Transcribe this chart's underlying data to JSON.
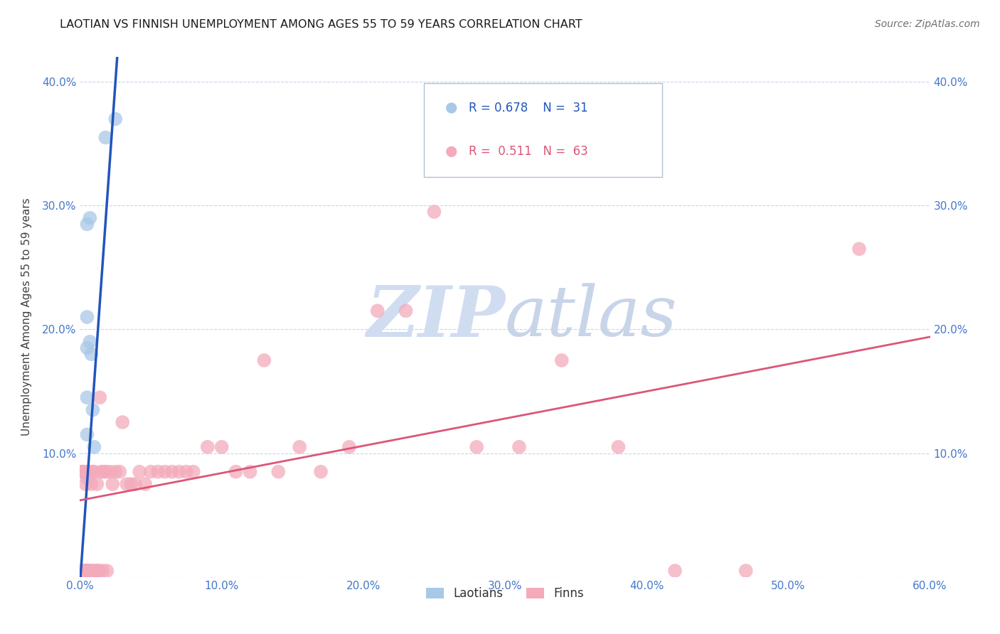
{
  "title": "LAOTIAN VS FINNISH UNEMPLOYMENT AMONG AGES 55 TO 59 YEARS CORRELATION CHART",
  "source": "Source: ZipAtlas.com",
  "ylabel": "Unemployment Among Ages 55 to 59 years",
  "xlim": [
    0.0,
    0.6
  ],
  "ylim": [
    0.0,
    0.42
  ],
  "xticks": [
    0.0,
    0.1,
    0.2,
    0.3,
    0.4,
    0.5,
    0.6
  ],
  "yticks": [
    0.0,
    0.1,
    0.2,
    0.3,
    0.4
  ],
  "laotian_color": "#a8c8e8",
  "finn_color": "#f4aabb",
  "laotian_line_color": "#2255bb",
  "finn_line_color": "#dd5577",
  "tick_color": "#4477cc",
  "watermark_color": "#d0dcf0",
  "laotian_x": [
    0.001,
    0.001,
    0.002,
    0.002,
    0.002,
    0.003,
    0.003,
    0.003,
    0.003,
    0.003,
    0.003,
    0.004,
    0.004,
    0.004,
    0.004,
    0.004,
    0.005,
    0.005,
    0.005,
    0.005,
    0.005,
    0.005,
    0.006,
    0.007,
    0.007,
    0.008,
    0.009,
    0.01,
    0.013,
    0.018,
    0.025
  ],
  "laotian_y": [
    0.005,
    0.005,
    0.005,
    0.005,
    0.005,
    0.005,
    0.005,
    0.005,
    0.005,
    0.005,
    0.005,
    0.005,
    0.005,
    0.005,
    0.005,
    0.005,
    0.115,
    0.08,
    0.145,
    0.185,
    0.21,
    0.285,
    0.005,
    0.19,
    0.29,
    0.18,
    0.135,
    0.105,
    0.005,
    0.355,
    0.37
  ],
  "finn_x": [
    0.001,
    0.002,
    0.002,
    0.003,
    0.003,
    0.004,
    0.004,
    0.004,
    0.005,
    0.005,
    0.006,
    0.007,
    0.007,
    0.008,
    0.008,
    0.009,
    0.01,
    0.01,
    0.011,
    0.012,
    0.013,
    0.014,
    0.015,
    0.016,
    0.017,
    0.018,
    0.019,
    0.021,
    0.023,
    0.025,
    0.028,
    0.03,
    0.033,
    0.036,
    0.039,
    0.042,
    0.046,
    0.05,
    0.055,
    0.06,
    0.065,
    0.07,
    0.075,
    0.08,
    0.09,
    0.1,
    0.11,
    0.12,
    0.13,
    0.14,
    0.155,
    0.17,
    0.19,
    0.21,
    0.23,
    0.25,
    0.28,
    0.31,
    0.34,
    0.38,
    0.42,
    0.47,
    0.55
  ],
  "finn_y": [
    0.085,
    0.005,
    0.085,
    0.005,
    0.085,
    0.005,
    0.075,
    0.005,
    0.005,
    0.085,
    0.005,
    0.005,
    0.085,
    0.075,
    0.005,
    0.085,
    0.005,
    0.085,
    0.005,
    0.075,
    0.005,
    0.145,
    0.085,
    0.005,
    0.085,
    0.085,
    0.005,
    0.085,
    0.075,
    0.085,
    0.085,
    0.125,
    0.075,
    0.075,
    0.075,
    0.085,
    0.075,
    0.085,
    0.085,
    0.085,
    0.085,
    0.085,
    0.085,
    0.085,
    0.105,
    0.105,
    0.085,
    0.085,
    0.175,
    0.085,
    0.105,
    0.085,
    0.105,
    0.215,
    0.215,
    0.295,
    0.105,
    0.105,
    0.175,
    0.105,
    0.005,
    0.005,
    0.265
  ]
}
